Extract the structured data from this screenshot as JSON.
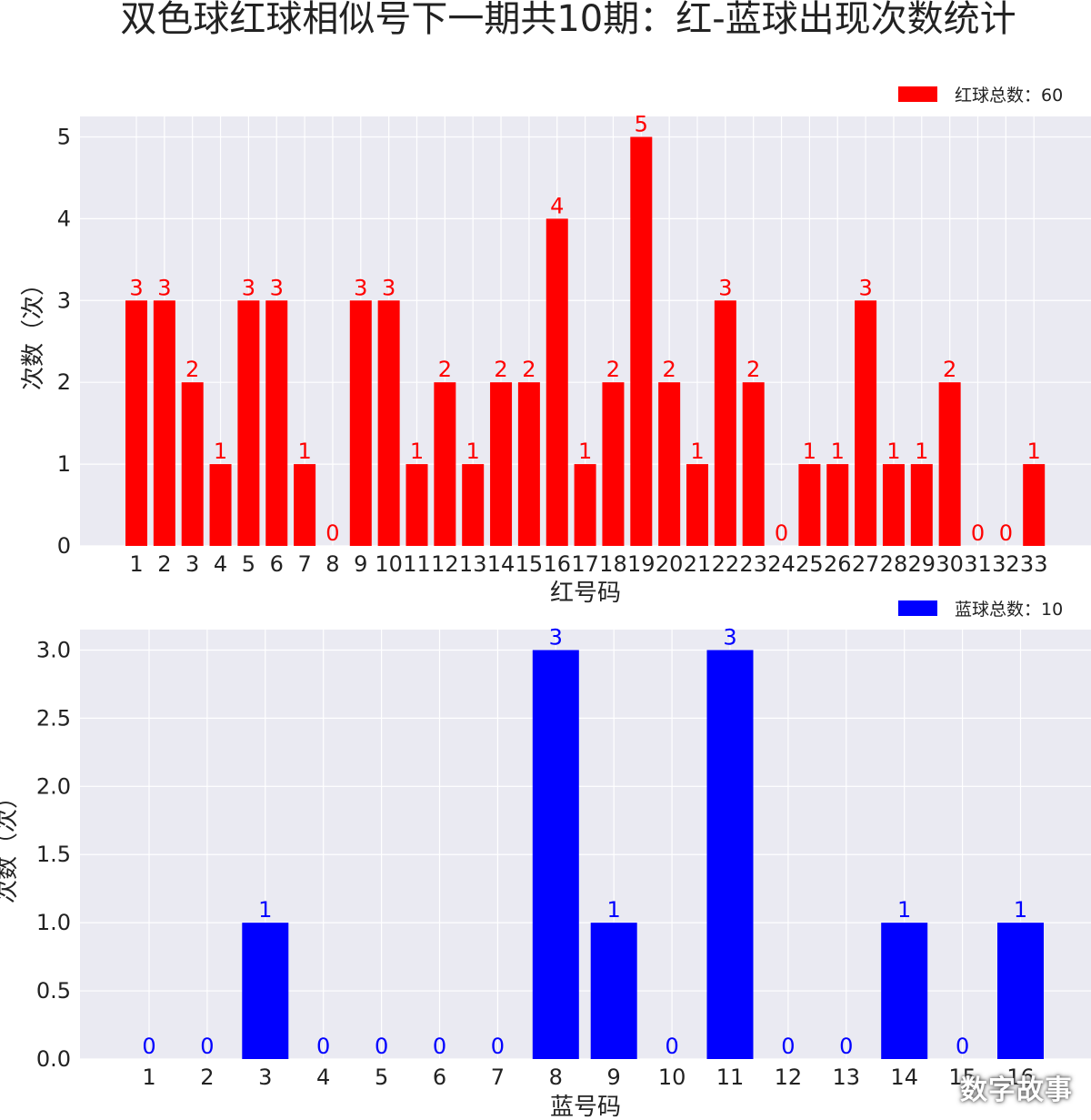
{
  "title": "双色球红球相似号下一期共10期：红-蓝球出现次数统计",
  "watermark": "数字故事",
  "chart_data": [
    {
      "type": "bar",
      "color": "#ff0000",
      "categories": [
        "1",
        "2",
        "3",
        "4",
        "5",
        "6",
        "7",
        "8",
        "9",
        "10",
        "11",
        "12",
        "13",
        "14",
        "15",
        "16",
        "17",
        "18",
        "19",
        "20",
        "21",
        "22",
        "23",
        "24",
        "25",
        "26",
        "27",
        "28",
        "29",
        "30",
        "31",
        "32",
        "33"
      ],
      "series": [
        {
          "name": "红球总数：60",
          "values": [
            3,
            3,
            2,
            1,
            3,
            3,
            1,
            0,
            3,
            3,
            1,
            2,
            1,
            2,
            2,
            4,
            1,
            2,
            5,
            2,
            1,
            3,
            2,
            0,
            1,
            1,
            3,
            1,
            1,
            2,
            0,
            0,
            1
          ]
        }
      ],
      "xlabel": "红号码",
      "ylabel": "次数（次）",
      "ylim": [
        0,
        5.25
      ],
      "yticks": [
        0,
        1,
        2,
        3,
        4,
        5
      ],
      "ytick_labels": [
        "0",
        "1",
        "2",
        "3",
        "4",
        "5"
      ],
      "grid": true,
      "legend": "top-right"
    },
    {
      "type": "bar",
      "color": "#0000ff",
      "categories": [
        "1",
        "2",
        "3",
        "4",
        "5",
        "6",
        "7",
        "8",
        "9",
        "10",
        "11",
        "12",
        "13",
        "14",
        "15",
        "16"
      ],
      "series": [
        {
          "name": "蓝球总数：10",
          "values": [
            0,
            0,
            1,
            0,
            0,
            0,
            0,
            3,
            1,
            0,
            3,
            0,
            0,
            1,
            0,
            1
          ]
        }
      ],
      "xlabel": "蓝号码",
      "ylabel": "次数（次）",
      "ylim": [
        0,
        3.15
      ],
      "yticks": [
        0,
        0.5,
        1,
        1.5,
        2,
        2.5,
        3
      ],
      "ytick_labels": [
        "0.0",
        "0.5",
        "1.0",
        "1.5",
        "2.0",
        "2.5",
        "3.0"
      ],
      "grid": true,
      "legend": "top-right"
    }
  ]
}
